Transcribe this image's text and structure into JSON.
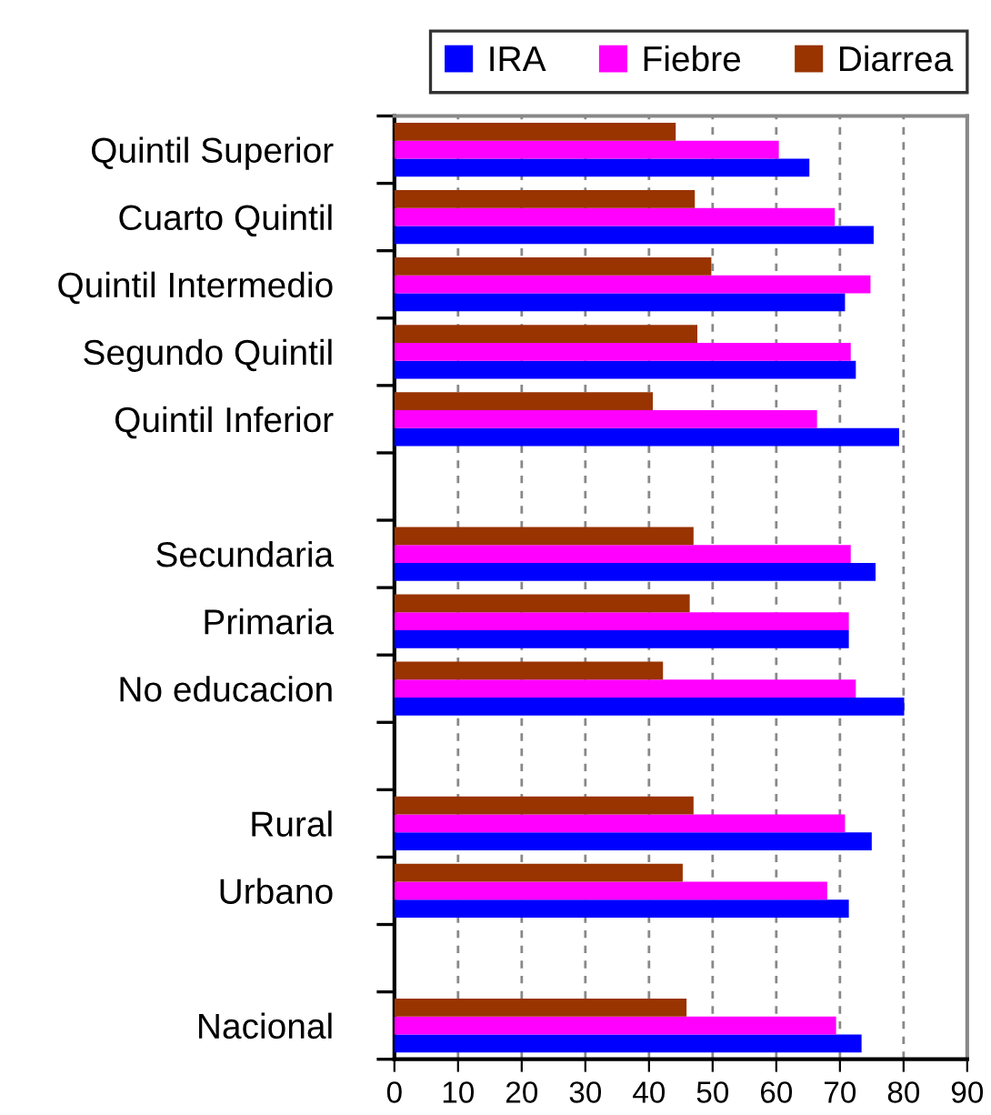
{
  "chart_data": {
    "type": "bar",
    "orientation": "horizontal",
    "categories": [
      "Quintil Superior",
      "Cuarto Quintil",
      "Quintil Intermedio",
      "Segundo Quintil",
      "Quintil Inferior",
      null,
      "Secundaria",
      "Primaria",
      "No educacion",
      null,
      "Rural",
      "Urbano",
      null,
      "Nacional"
    ],
    "series": [
      {
        "name": "IRA",
        "color": "#0000ff",
        "values": [
          65.2,
          75.3,
          70.8,
          72.5,
          79.3,
          null,
          75.6,
          71.4,
          80.1,
          null,
          75.0,
          71.4,
          null,
          73.4
        ]
      },
      {
        "name": "Fiebre",
        "color": "#ff00ff",
        "values": [
          60.4,
          69.2,
          74.8,
          71.7,
          66.4,
          null,
          71.7,
          71.4,
          72.5,
          null,
          70.8,
          68.0,
          null,
          69.4
        ]
      },
      {
        "name": "Diarrea",
        "color": "#993300",
        "values": [
          44.2,
          47.2,
          49.8,
          47.6,
          40.6,
          null,
          47.0,
          46.4,
          42.2,
          null,
          47.0,
          45.3,
          null,
          45.9
        ]
      }
    ],
    "xlim": [
      0,
      90
    ],
    "xticks": [
      0,
      10,
      20,
      30,
      40,
      50,
      60,
      70,
      80,
      90
    ],
    "grid": "x",
    "legend": "top right"
  }
}
